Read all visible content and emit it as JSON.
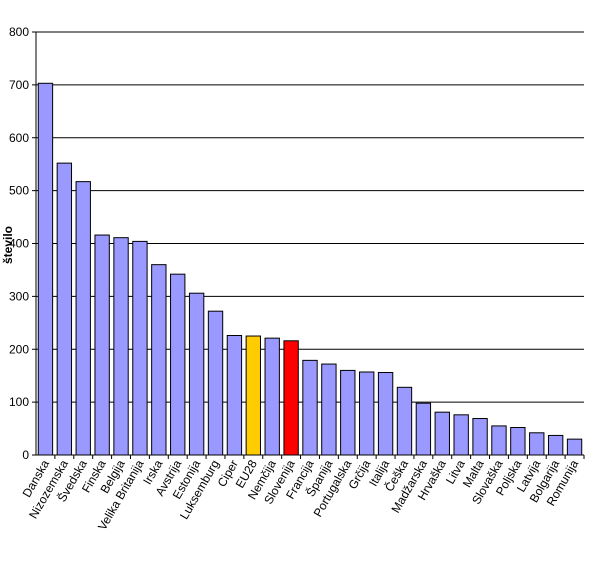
{
  "chart_data": {
    "type": "bar",
    "title": "",
    "xlabel": "",
    "ylabel": "število",
    "ylim": [
      0,
      800
    ],
    "yticks": [
      0,
      100,
      200,
      300,
      400,
      500,
      600,
      700,
      800
    ],
    "grid": true,
    "legend": "none",
    "categories": [
      "Danska",
      "Nizozemska",
      "Švedska",
      "Finska",
      "Belgija",
      "Velika Britanija",
      "Irska",
      "Avstrija",
      "Estonija",
      "Luksemburg",
      "Ciper",
      "EU28",
      "Nemčija",
      "Slovenija",
      "Francija",
      "Španija",
      "Portugalska",
      "Grčija",
      "Italija",
      "Češka",
      "Madžarska",
      "Hrvaška",
      "Litva",
      "Malta",
      "Slovaška",
      "Poljska",
      "Latvija",
      "Bolgarija",
      "Romunija"
    ],
    "values": [
      703,
      552,
      517,
      416,
      411,
      404,
      360,
      342,
      306,
      272,
      226,
      225,
      221,
      216,
      179,
      172,
      160,
      157,
      156,
      128,
      98,
      81,
      76,
      69,
      55,
      52,
      42,
      37,
      30
    ],
    "colors": {
      "default": "#9999ff",
      "highlight": {
        "EU28": "#ffcc00",
        "Slovenija": "#ff0000"
      },
      "border": "#000000",
      "grid": "#000000"
    }
  }
}
